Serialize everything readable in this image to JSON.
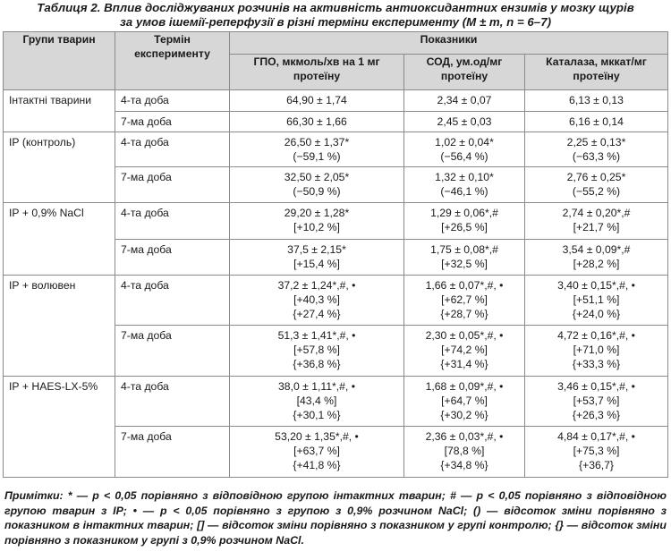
{
  "caption": {
    "line1": "Таблиця 2. Вплив досліджуваних розчинів на активність антиоксидантних ензимів у мозку щурів",
    "line2": "за умов ішемії-реперфузії в різні терміни експерименту (M ± m, n = 6–7)"
  },
  "header": {
    "group": "Групи тварин",
    "term": "Термін експерименту",
    "indicators": "Показники",
    "col1": "ГПО, мкмоль/хв на 1 мг протеїну",
    "col2": "СОД, ум.од/мг протеїну",
    "col3": "Каталаза, мккат/мг протеїну"
  },
  "groups": [
    {
      "name": "Інтактні тварини",
      "rows": [
        {
          "term": "4-та доба",
          "c1": [
            "64,90 ± 1,74"
          ],
          "c2": [
            "2,34 ± 0,07"
          ],
          "c3": [
            "6,13 ± 0,13"
          ]
        },
        {
          "term": "7-ма доба",
          "c1": [
            "66,30 ± 1,66"
          ],
          "c2": [
            "2,45 ± 0,03"
          ],
          "c3": [
            "6,16 ± 0,14"
          ]
        }
      ]
    },
    {
      "name": "ІР (контроль)",
      "rows": [
        {
          "term": "4-та доба",
          "c1": [
            "26,50 ± 1,37*",
            "(−59,1 %)"
          ],
          "c2": [
            "1,02 ± 0,04*",
            "(−56,4 %)"
          ],
          "c3": [
            "2,25 ± 0,13*",
            "(−63,3 %)"
          ]
        },
        {
          "term": "7-ма доба",
          "c1": [
            "32,50 ± 2,05*",
            "(−50,9 %)"
          ],
          "c2": [
            "1,32 ± 0,10*",
            "(−46,1 %)"
          ],
          "c3": [
            "2,76 ± 0,25*",
            "(−55,2 %)"
          ]
        }
      ]
    },
    {
      "name": "ІР + 0,9% NaCl",
      "rows": [
        {
          "term": "4-та доба",
          "c1": [
            "29,20 ± 1,28*",
            "[+10,2 %]"
          ],
          "c2": [
            "1,29 ± 0,06*,#",
            "[+26,5 %]"
          ],
          "c3": [
            "2,74 ± 0,20*,#",
            "[+21,7 %]"
          ]
        },
        {
          "term": "7-ма доба",
          "c1": [
            "37,5 ± 2,15*",
            "[+15,4 %]"
          ],
          "c2": [
            "1,75 ± 0,08*,#",
            "[+32,5 %]"
          ],
          "c3": [
            "3,54 ± 0,09*,#",
            "[+28,2 %]"
          ]
        }
      ]
    },
    {
      "name": "ІР + волювен",
      "rows": [
        {
          "term": "4-та доба",
          "c1": [
            "37,2 ± 1,24*,#, •",
            "[+40,3 %]",
            "{+27,4 %}"
          ],
          "c2": [
            "1,66 ± 0,07*,#, •",
            "[+62,7 %]",
            "{+28,7 %}"
          ],
          "c3": [
            "3,40 ± 0,15*,#, •",
            "[+51,1 %]",
            "{+24,0 %}"
          ]
        },
        {
          "term": "7-ма доба",
          "c1": [
            "51,3 ± 1,41*,#, •",
            "[+57,8 %]",
            "{+36,8 %}"
          ],
          "c2": [
            "2,30 ± 0,05*,#, •",
            "[+74,2 %]",
            "{+31,4 %}"
          ],
          "c3": [
            "4,72 ± 0,16*,#, •",
            "[+71,0 %]",
            "{+33,3 %}"
          ]
        }
      ]
    },
    {
      "name": "ІР + HAES-LX-5%",
      "rows": [
        {
          "term": "4-та доба",
          "c1": [
            "38,0 ± 1,11*,#, •",
            "[43,4 %]",
            "{+30,1 %}"
          ],
          "c2": [
            "1,68 ± 0,09*,#, •",
            "[+64,7 %]",
            "{+30,2 %}"
          ],
          "c3": [
            "3,46 ± 0,15*,#, •",
            "[+53,7 %]",
            "{+26,3 %}"
          ]
        },
        {
          "term": "7-ма доба",
          "c1": [
            "53,20 ± 1,35*,#, •",
            "[+63,7 %]",
            "{+41,8 %}"
          ],
          "c2": [
            "2,36 ± 0,03*,#, •",
            "[78,8 %]",
            "{+34,8 %}"
          ],
          "c3": [
            "4,84 ± 0,17*,#, •",
            "[+75,3 %]",
            "{+36,7}"
          ]
        }
      ]
    }
  ],
  "note": "Примітки: * — р < 0,05 порівняно з відповідною групою інтактних тварин; # — р < 0,05 порівняно з відповідною групою тварин з ІР; • — р < 0,05 порівняно з групою з 0,9% розчином NaCl; () — відсоток зміни порівняно з показником в інтактних тварин; [] — відсоток зміни порівняно з показником у групі контролю; {} — відсоток зміни порівняно з показником у групі з 0,9% розчином NaCl."
}
